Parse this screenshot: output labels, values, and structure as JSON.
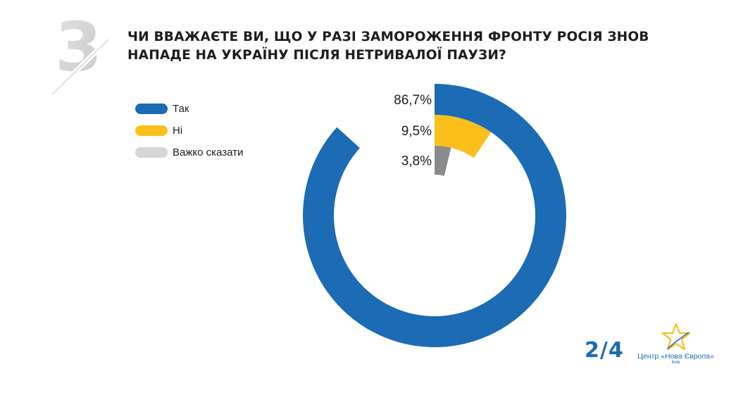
{
  "question": {
    "number": "3",
    "title_line1": "ЧИ ВВАЖАЄТЕ ВИ, ЩО У РАЗІ ЗАМОРОЖЕННЯ ФРОНТУ РОСІЯ ЗНОВ",
    "title_line2": "НАПАДЕ НА УКРАЇНУ ПІСЛЯ НЕТРИВАЛОЇ ПАУЗИ?"
  },
  "chart_data": {
    "type": "pie",
    "style": "donut",
    "categories": [
      "Так",
      "Ні",
      "Важко сказати"
    ],
    "values": [
      86.7,
      9.5,
      3.8
    ],
    "value_labels": [
      "86,7%",
      "9,5%",
      "3,8%"
    ],
    "colors": [
      "#1b6bb5",
      "#fbbf1c",
      "#8a8b8d"
    ],
    "legend_position": "top-left",
    "slice_display": "radial bars"
  },
  "footer": {
    "page_counter": "2/4",
    "logo_name": "Центр «Нова Європа»",
    "logo_city": "Київ"
  },
  "colors": {
    "accent_blue": "#1b6bb5",
    "yellow": "#fbbf1c",
    "gray": "#8a8b8d",
    "number_gray": "#d8d8d8"
  }
}
